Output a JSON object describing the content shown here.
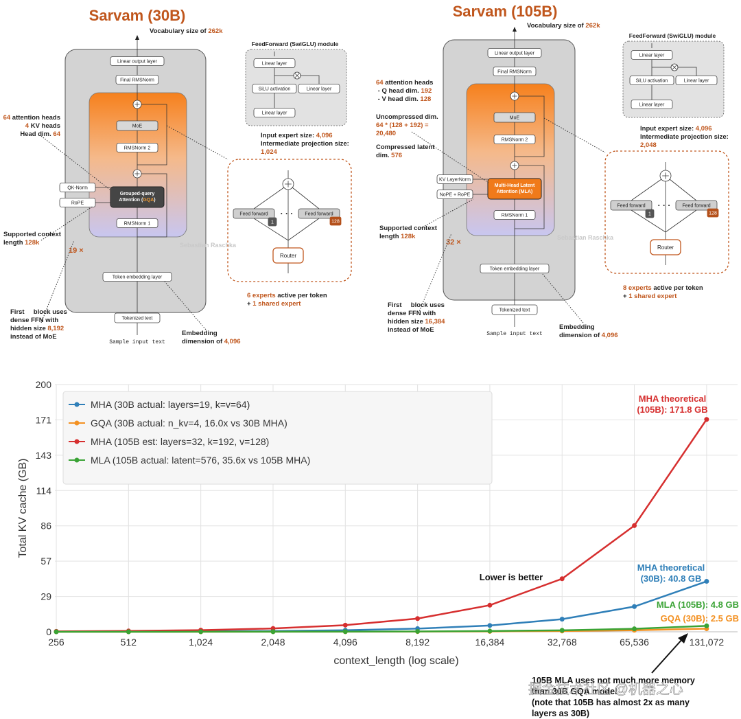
{
  "accent_color": "#c0561c",
  "diagrams": [
    {
      "title": "Sarvam (30B)",
      "boxes": {
        "linear_output": "Linear output layer",
        "final_norm": "Final RMSNorm",
        "moe": "MoE",
        "norm2": "RMSNorm 2",
        "norm1": "RMSNorm 1",
        "embedding": "Token embedding layer",
        "tokenized": "Tokenized text"
      },
      "attention": [
        [
          "Grouped-query"
        ],
        [
          "Attention (",
          {
            "hl": "GQA"
          },
          ")"
        ]
      ],
      "side_boxes": [
        "QK-Norm",
        "RoPE"
      ],
      "input_text": "Sample input text",
      "repeat": "19 ×",
      "notes": {
        "vocab": [
          [
            "Vocabulary size of ",
            {
              "hl": "262k"
            }
          ]
        ],
        "heads": [
          [
            {
              "hl": "64"
            },
            " attention heads"
          ],
          [
            {
              "hl": "4"
            },
            " KV heads"
          ],
          [
            "Head dim. ",
            {
              "hl": "64"
            }
          ]
        ],
        "context": [
          [
            "Supported context"
          ],
          [
            "length ",
            {
              "hl": "128k"
            }
          ]
        ],
        "first_block": [
          [
            "First     block uses"
          ],
          [
            "dense FFN with"
          ],
          [
            "hidden size ",
            {
              "hl": "8,192"
            }
          ],
          [
            "instead of MoE"
          ]
        ],
        "embedding": [
          [
            "Embedding"
          ],
          [
            "dimension of ",
            {
              "hl": "4,096"
            }
          ]
        ],
        "ffn_sizes": [
          [
            "Input expert size: ",
            {
              "hl": "4,096"
            }
          ],
          [
            "Intermediate projection size:"
          ],
          [
            {
              "hl": "1,024"
            }
          ]
        ],
        "experts": [
          [
            {
              "hl": "6 experts"
            },
            " active per token"
          ],
          [
            "+ ",
            {
              "hl": "1 shared expert"
            }
          ]
        ]
      },
      "ffn": {
        "title": "FeedForward (SwiGLU) module",
        "boxes": [
          "Linear layer",
          "SiLU activation",
          "Linear layer",
          "Linear layer"
        ]
      },
      "moe": {
        "experts": [
          "Feed forward",
          "Feed forward"
        ],
        "badges": [
          "1",
          "128"
        ],
        "router": "Router"
      },
      "watermark": "Sebastian Raschka"
    },
    {
      "title": "Sarvam (105B)",
      "boxes": {
        "linear_output": "Linear output layer",
        "final_norm": "Final RMSNorm",
        "moe": "MoE",
        "norm2": "RMSNorm 2",
        "norm1": "RMSNorm 1",
        "embedding": "Token embedding layer",
        "tokenized": "Tokenized text"
      },
      "attention": [
        [
          "Multi-Head Latent"
        ],
        [
          "Attention (MLA)"
        ]
      ],
      "side_boxes": [
        "KV LayerNorm",
        "NoPE + RoPE"
      ],
      "input_text": "Sample input text",
      "repeat": "32 ×",
      "notes": {
        "vocab": [
          [
            "Vocabulary size of ",
            {
              "hl": "262k"
            }
          ]
        ],
        "heads": [
          [
            {
              "hl": "64"
            },
            " attention heads"
          ],
          [
            " - Q head dim. ",
            {
              "hl": "192"
            }
          ],
          [
            " - V head dim. ",
            {
              "hl": "128"
            }
          ]
        ],
        "uncompressed": [
          [
            "Uncompressed dim."
          ],
          [
            {
              "hl": "64 * (128 + 192) ="
            }
          ],
          [
            {
              "hl": "20,480"
            }
          ]
        ],
        "compressed": [
          [
            "Compressed latent"
          ],
          [
            "dim. ",
            {
              "hl": "576"
            }
          ]
        ],
        "context": [
          [
            "Supported context"
          ],
          [
            "length ",
            {
              "hl": "128k"
            }
          ]
        ],
        "first_block": [
          [
            "First     block uses"
          ],
          [
            "dense FFN with"
          ],
          [
            "hidden size ",
            {
              "hl": "16,384"
            }
          ],
          [
            "instead of MoE"
          ]
        ],
        "embedding": [
          [
            "Embedding"
          ],
          [
            "dimension of ",
            {
              "hl": "4,096"
            }
          ]
        ],
        "ffn_sizes": [
          [
            "Input expert size: ",
            {
              "hl": "4,096"
            }
          ],
          [
            "Intermediate projection size:"
          ],
          [
            {
              "hl": "2,048"
            }
          ]
        ],
        "experts": [
          [
            {
              "hl": "8 experts"
            },
            " active per token"
          ],
          [
            "+ ",
            {
              "hl": "1 shared expert"
            }
          ]
        ]
      },
      "ffn": {
        "title": "FeedForward (SwiGLU) module",
        "boxes": [
          "Linear layer",
          "SiLU activation",
          "Linear layer",
          "Linear layer"
        ]
      },
      "moe": {
        "experts": [
          "Feed forward",
          "Feed forward"
        ],
        "badges": [
          "1",
          "128"
        ],
        "router": "Router"
      },
      "watermark": "Sebastian Raschka"
    }
  ],
  "chart_data": {
    "type": "line",
    "xlabel": "context_length (log scale)",
    "ylabel": "Total KV cache (GB)",
    "x": [
      256,
      512,
      1024,
      2048,
      4096,
      8192,
      16384,
      32768,
      65536,
      131072
    ],
    "xscale": "log",
    "xlim": [
      252.6,
      176400
    ],
    "xticks": [
      256,
      512,
      {
        "value": 1024,
        "label": "1,024"
      },
      {
        "value": 2048,
        "label": "2,048"
      },
      {
        "value": 4096,
        "label": "4,096"
      },
      {
        "value": 8192,
        "label": "8,192"
      },
      {
        "value": 16384,
        "label": "16,384"
      },
      {
        "value": 32768,
        "label": "32,768"
      },
      {
        "value": 65536,
        "label": "65,536"
      },
      {
        "value": 131072,
        "label": "131,072"
      }
    ],
    "ylim": [
      0,
      200
    ],
    "yticks": [
      0,
      {
        "value": 28.571,
        "label": "29"
      },
      {
        "value": 57.143,
        "label": "57"
      },
      {
        "value": 85.714,
        "label": "86"
      },
      {
        "value": 114.286,
        "label": "114"
      },
      {
        "value": 142.857,
        "label": "143"
      },
      {
        "value": 171.429,
        "label": "171"
      },
      200
    ],
    "grid": true,
    "legend": "upper left",
    "series": [
      {
        "name": "MHA (30B actual: layers=19, k=v=64)",
        "color": "#2f7fb8",
        "values": [
          0.08,
          0.16,
          0.32,
          0.64,
          1.28,
          2.55,
          5.1,
          10.2,
          20.4,
          40.8
        ]
      },
      {
        "name": "GQA (30B actual: n_kv=4, 16.0x vs 30B MHA)",
        "color": "#f39122",
        "values": [
          0.005,
          0.01,
          0.02,
          0.04,
          0.08,
          0.16,
          0.31,
          0.63,
          1.25,
          2.5
        ]
      },
      {
        "name": "MHA (105B est: layers=32, k=192, v=128)",
        "color": "#d62f2f",
        "values": [
          0.34,
          0.67,
          1.34,
          2.68,
          5.37,
          10.7,
          21.5,
          42.9,
          85.9,
          171.8
        ]
      },
      {
        "name": "MLA (105B actual: latent=576, 35.6x vs 105B MHA)",
        "color": "#3aa335",
        "values": [
          0.009,
          0.019,
          0.038,
          0.075,
          0.15,
          0.3,
          0.6,
          1.2,
          2.4,
          4.8
        ]
      }
    ],
    "annotations": [
      {
        "lines": [
          "MHA theoretical",
          "(105B): 171.8 GB"
        ],
        "color": "#d62f2f"
      },
      {
        "lines": [
          "MHA theoretical",
          "(30B): 40.8 GB"
        ],
        "color": "#2f7fb8"
      },
      {
        "lines": [
          "MLA (105B): 4.8 GB"
        ],
        "color": "#3aa335"
      },
      {
        "lines": [
          "GQA (30B): 2.5 GB"
        ],
        "color": "#f39122"
      },
      {
        "lines": [
          "Lower is better"
        ],
        "color": "#111111"
      },
      {
        "lines": [
          "105B MLA uses not much more memory",
          "than 30B GQA model",
          "(note that 105B has almost 2x as many",
          "layers as 30B)"
        ],
        "color": "#111111"
      }
    ],
    "watermark": "掘金技术社区 @机器之心"
  }
}
